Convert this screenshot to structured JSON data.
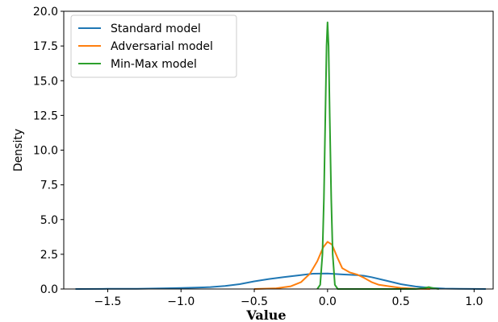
{
  "chart_data": {
    "type": "line",
    "title": "",
    "xlabel": "Value",
    "ylabel": "Density",
    "xlim": [
      -1.8,
      1.13
    ],
    "ylim": [
      0,
      20
    ],
    "grid": false,
    "legend_position": "top-left",
    "x_ticks": [
      -1.5,
      -1.0,
      -0.5,
      0.0,
      0.5,
      1.0
    ],
    "x_tick_labels": [
      "−1.5",
      "−1.0",
      "−0.5",
      "0.0",
      "0.5",
      "1.0"
    ],
    "y_ticks": [
      0,
      2.5,
      5,
      7.5,
      10,
      12.5,
      15,
      17.5,
      20
    ],
    "y_tick_labels": [
      "0.0",
      "2.5",
      "5.0",
      "7.5",
      "10.0",
      "12.5",
      "15.0",
      "17.5",
      "20.0"
    ],
    "series": [
      {
        "name": "Standard model",
        "color": "#1f77b4",
        "points": [
          [
            -1.72,
            0.0
          ],
          [
            -1.5,
            0.01
          ],
          [
            -1.3,
            0.02
          ],
          [
            -1.1,
            0.05
          ],
          [
            -1.0,
            0.07
          ],
          [
            -0.9,
            0.1
          ],
          [
            -0.8,
            0.14
          ],
          [
            -0.7,
            0.22
          ],
          [
            -0.6,
            0.35
          ],
          [
            -0.5,
            0.55
          ],
          [
            -0.4,
            0.72
          ],
          [
            -0.3,
            0.85
          ],
          [
            -0.2,
            0.98
          ],
          [
            -0.1,
            1.1
          ],
          [
            0.0,
            1.12
          ],
          [
            0.1,
            1.05
          ],
          [
            0.2,
            1.0
          ],
          [
            0.25,
            0.95
          ],
          [
            0.3,
            0.85
          ],
          [
            0.4,
            0.6
          ],
          [
            0.5,
            0.35
          ],
          [
            0.6,
            0.18
          ],
          [
            0.7,
            0.08
          ],
          [
            0.8,
            0.03
          ],
          [
            0.9,
            0.01
          ],
          [
            1.08,
            0.0
          ]
        ]
      },
      {
        "name": "Adversarial model",
        "color": "#ff7f0e",
        "points": [
          [
            -0.5,
            0.0
          ],
          [
            -0.35,
            0.05
          ],
          [
            -0.25,
            0.2
          ],
          [
            -0.18,
            0.5
          ],
          [
            -0.12,
            1.1
          ],
          [
            -0.07,
            2.0
          ],
          [
            -0.03,
            3.0
          ],
          [
            0.0,
            3.4
          ],
          [
            0.03,
            3.2
          ],
          [
            0.07,
            2.2
          ],
          [
            0.1,
            1.5
          ],
          [
            0.15,
            1.2
          ],
          [
            0.2,
            1.05
          ],
          [
            0.25,
            0.8
          ],
          [
            0.3,
            0.5
          ],
          [
            0.35,
            0.3
          ],
          [
            0.42,
            0.2
          ],
          [
            0.5,
            0.08
          ],
          [
            0.6,
            0.02
          ],
          [
            0.7,
            0.0
          ]
        ]
      },
      {
        "name": "Min-Max model",
        "color": "#2ca02c",
        "points": [
          [
            -0.07,
            0.0
          ],
          [
            -0.05,
            0.3
          ],
          [
            -0.035,
            2.5
          ],
          [
            -0.025,
            6.5
          ],
          [
            -0.015,
            12.5
          ],
          [
            -0.007,
            17.5
          ],
          [
            0.0,
            19.2
          ],
          [
            0.007,
            17.5
          ],
          [
            0.015,
            12.5
          ],
          [
            0.025,
            6.5
          ],
          [
            0.035,
            2.5
          ],
          [
            0.05,
            0.3
          ],
          [
            0.07,
            0.0
          ],
          [
            0.6,
            0.0
          ],
          [
            0.65,
            0.04
          ],
          [
            0.69,
            0.14
          ],
          [
            0.72,
            0.06
          ],
          [
            0.76,
            0.0
          ]
        ]
      }
    ]
  }
}
